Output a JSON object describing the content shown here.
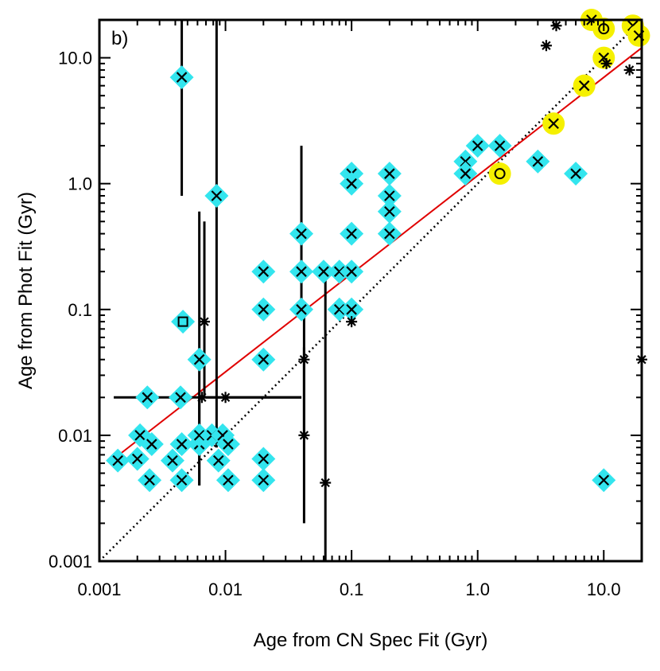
{
  "chart_data": {
    "type": "scatter",
    "panel_label": "b)",
    "xlabel": "Age from CN Spec Fit  (Gyr)",
    "ylabel": "Age from Phot Fit  (Gyr)",
    "xscale": "log",
    "yscale": "log",
    "xlim": [
      0.001,
      20
    ],
    "ylim": [
      0.001,
      20
    ],
    "xticks": [
      {
        "value": 0.001,
        "label": "0.001"
      },
      {
        "value": 0.01,
        "label": "0.01"
      },
      {
        "value": 0.1,
        "label": "0.1"
      },
      {
        "value": 1,
        "label": "1.0"
      },
      {
        "value": 10,
        "label": "10.0"
      }
    ],
    "yticks": [
      {
        "value": 0.001,
        "label": "0.001"
      },
      {
        "value": 0.01,
        "label": "0.01"
      },
      {
        "value": 0.1,
        "label": "0.1"
      },
      {
        "value": 1,
        "label": "1.0"
      },
      {
        "value": 10,
        "label": "10.0"
      }
    ],
    "colors": {
      "cyan": "#33e5ee",
      "yellow": "#f5f000",
      "fit_line": "#e00000",
      "marker": "#000000"
    },
    "lines": [
      {
        "name": "one-to-one",
        "style": "dotted",
        "color": "#000000",
        "x": [
          0.001,
          20
        ],
        "y": [
          0.001,
          20
        ]
      },
      {
        "name": "fit",
        "style": "solid",
        "color": "#e00000",
        "x": [
          0.0013,
          20
        ],
        "y": [
          0.0065,
          12
        ]
      }
    ],
    "series": [
      {
        "name": "cyan diamonds",
        "marker": "x-on-diamond",
        "points": [
          {
            "x": 0.0045,
            "y": 7.0,
            "yerr": [
              0.8,
              20
            ]
          },
          {
            "x": 0.0085,
            "y": 0.8,
            "yerr": [
              0.008,
              20
            ]
          },
          {
            "x": 0.0046,
            "y": 0.08,
            "box": true
          },
          {
            "x": 0.0062,
            "y": 0.04,
            "yerr": [
              0.004,
              0.6
            ]
          },
          {
            "x": 0.0024,
            "y": 0.02,
            "xerr": [
              0.0013,
              0.004
            ]
          },
          {
            "x": 0.0044,
            "y": 0.02
          },
          {
            "x": 0.0014,
            "y": 0.0063
          },
          {
            "x": 0.002,
            "y": 0.0065
          },
          {
            "x": 0.0021,
            "y": 0.01
          },
          {
            "x": 0.0026,
            "y": 0.0085
          },
          {
            "x": 0.0025,
            "y": 0.0044
          },
          {
            "x": 0.0038,
            "y": 0.0063
          },
          {
            "x": 0.0045,
            "y": 0.0044
          },
          {
            "x": 0.0045,
            "y": 0.0085
          },
          {
            "x": 0.0062,
            "y": 0.0085,
            "yerr": [
              0.004,
              0.02
            ]
          },
          {
            "x": 0.0062,
            "y": 0.01
          },
          {
            "x": 0.0078,
            "y": 0.01
          },
          {
            "x": 0.0088,
            "y": 0.0063
          },
          {
            "x": 0.0095,
            "y": 0.01
          },
          {
            "x": 0.0105,
            "y": 0.0044
          },
          {
            "x": 0.0105,
            "y": 0.0085
          },
          {
            "x": 0.02,
            "y": 0.0065
          },
          {
            "x": 0.02,
            "y": 0.0044
          },
          {
            "x": 0.02,
            "y": 0.04
          },
          {
            "x": 0.02,
            "y": 0.1
          },
          {
            "x": 0.02,
            "y": 0.2
          },
          {
            "x": 0.04,
            "y": 0.4,
            "yerr": [
              0.1,
              2
            ]
          },
          {
            "x": 0.04,
            "y": 0.2
          },
          {
            "x": 0.04,
            "y": 0.1
          },
          {
            "x": 0.06,
            "y": 0.2
          },
          {
            "x": 0.08,
            "y": 0.2
          },
          {
            "x": 0.08,
            "y": 0.1
          },
          {
            "x": 0.1,
            "y": 0.4
          },
          {
            "x": 0.1,
            "y": 0.2
          },
          {
            "x": 0.1,
            "y": 0.1
          },
          {
            "x": 0.1,
            "y": 1.2
          },
          {
            "x": 0.1,
            "y": 1.0
          },
          {
            "x": 0.2,
            "y": 1.2
          },
          {
            "x": 0.2,
            "y": 0.8
          },
          {
            "x": 0.2,
            "y": 0.6
          },
          {
            "x": 0.2,
            "y": 0.4
          },
          {
            "x": 0.8,
            "y": 1.5
          },
          {
            "x": 0.8,
            "y": 1.2
          },
          {
            "x": 1.0,
            "y": 2.0
          },
          {
            "x": 1.5,
            "y": 2.0
          },
          {
            "x": 3.0,
            "y": 1.5
          },
          {
            "x": 6.0,
            "y": 1.2
          },
          {
            "x": 10.0,
            "y": 0.0044
          }
        ]
      },
      {
        "name": "yellow circles",
        "marker": "x-on-circle",
        "points": [
          {
            "x": 1.5,
            "y": 1.2,
            "symbol": "o"
          },
          {
            "x": 4.0,
            "y": 3.0
          },
          {
            "x": 7.0,
            "y": 6.0
          },
          {
            "x": 10.0,
            "y": 10.0
          },
          {
            "x": 8.0,
            "y": 20.0
          },
          {
            "x": 10.0,
            "y": 17.0,
            "symbol": "o"
          },
          {
            "x": 17.0,
            "y": 18.0
          },
          {
            "x": 19.0,
            "y": 15.0
          }
        ]
      },
      {
        "name": "black asterisks",
        "marker": "asterisk",
        "points": [
          {
            "x": 0.0068,
            "y": 0.08,
            "yerr": [
              0.02,
              0.5
            ]
          },
          {
            "x": 0.0065,
            "y": 0.02,
            "xerr": [
              0.004,
              0.04
            ]
          },
          {
            "x": 0.01,
            "y": 0.02,
            "xerr": [
              0.007,
              0.04
            ]
          },
          {
            "x": 0.042,
            "y": 0.04,
            "yerr": [
              0.01,
              0.1
            ]
          },
          {
            "x": 0.042,
            "y": 0.01,
            "yerr": [
              0.002,
              0.05
            ]
          },
          {
            "x": 0.062,
            "y": 0.0042,
            "yerr": [
              0.001,
              0.2
            ]
          },
          {
            "x": 0.1,
            "y": 0.08
          },
          {
            "x": 3.5,
            "y": 12.5
          },
          {
            "x": 4.2,
            "y": 18.0
          },
          {
            "x": 10.5,
            "y": 9.0
          },
          {
            "x": 16.0,
            "y": 8.0
          },
          {
            "x": 20.0,
            "y": 0.04
          }
        ]
      }
    ]
  }
}
